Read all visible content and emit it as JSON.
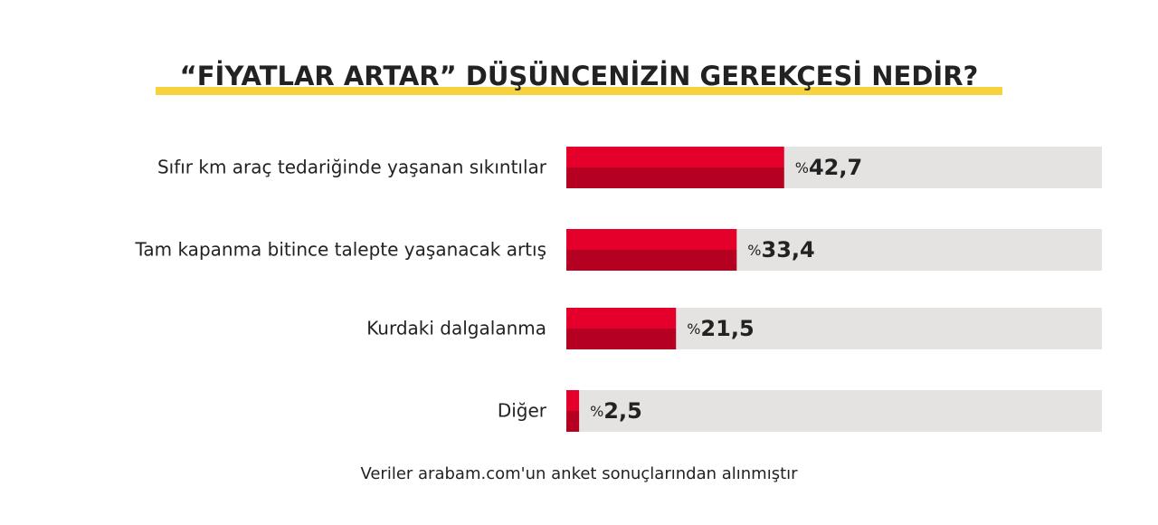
{
  "chart_data": {
    "type": "bar",
    "orientation": "horizontal",
    "title": "“FİYATLAR ARTAR” DÜŞÜNCENİZİN GEREKÇESİ NEDİR?",
    "categories": [
      "Sıfır km araç tedariğinde yaşanan sıkıntılar",
      "Tam kapanma bitince talepte yaşanacak artış",
      "Kurdaki dalgalanma",
      "Diğer"
    ],
    "values": [
      42.7,
      33.4,
      21.5,
      2.5
    ],
    "value_labels": [
      "%42,7",
      "%33,4",
      "%21,5",
      "%2,5"
    ],
    "color": "#e4002b",
    "xlim": [
      0,
      105
    ],
    "source": "Veriler arabam.com'un anket sonuçlarından alınmıştır"
  }
}
